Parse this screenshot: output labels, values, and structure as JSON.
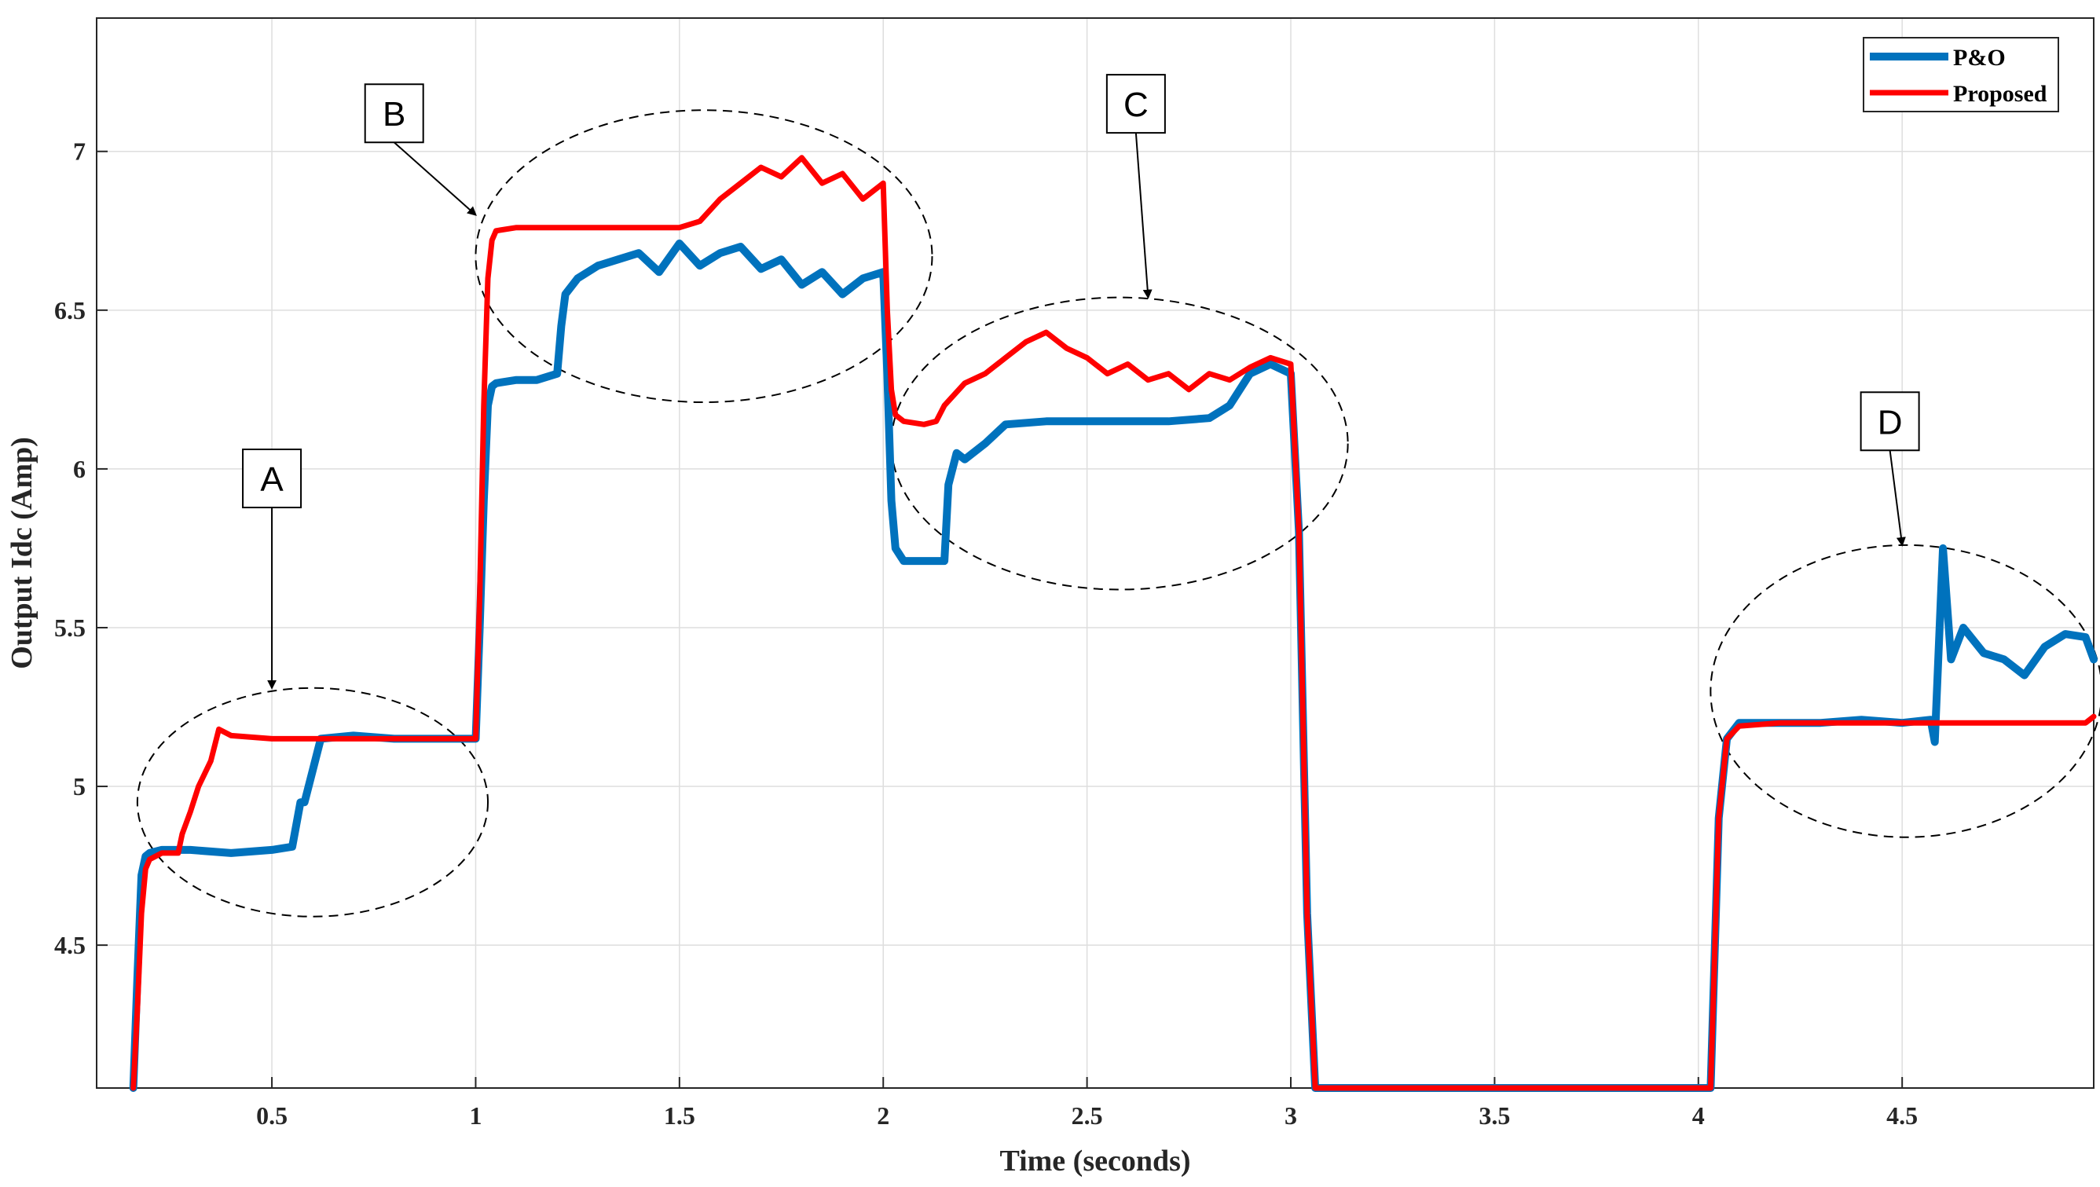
{
  "chart_data": {
    "type": "line",
    "xlabel": "Time (seconds)",
    "ylabel": "Output Idc (Amp)",
    "xlim": [
      0.07,
      4.97
    ],
    "ylim": [
      4.05,
      7.42
    ],
    "xticks": [
      0.5,
      1,
      1.5,
      2,
      2.5,
      3,
      3.5,
      4,
      4.5
    ],
    "xtick_labels": [
      "0.5",
      "1",
      "1.5",
      "2",
      "2.5",
      "3",
      "3.5",
      "4",
      "4.5"
    ],
    "yticks": [
      4.5,
      5,
      5.5,
      6,
      6.5,
      7
    ],
    "ytick_labels": [
      "4.5",
      "5",
      "5.5",
      "6",
      "6.5",
      "7"
    ],
    "grid": true,
    "legend_position": "top-right",
    "series": [
      {
        "name": "P&O",
        "color": "#0072BD",
        "x": [
          0.16,
          0.17,
          0.18,
          0.19,
          0.2,
          0.23,
          0.3,
          0.4,
          0.5,
          0.55,
          0.56,
          0.57,
          0.58,
          0.6,
          0.62,
          0.7,
          0.8,
          0.9,
          1.0,
          1.01,
          1.02,
          1.03,
          1.04,
          1.05,
          1.1,
          1.15,
          1.2,
          1.21,
          1.22,
          1.25,
          1.3,
          1.35,
          1.4,
          1.45,
          1.5,
          1.55,
          1.6,
          1.65,
          1.7,
          1.75,
          1.8,
          1.85,
          1.9,
          1.95,
          2.0,
          2.01,
          2.02,
          2.03,
          2.05,
          2.1,
          2.15,
          2.16,
          2.18,
          2.2,
          2.25,
          2.3,
          2.4,
          2.5,
          2.6,
          2.7,
          2.8,
          2.85,
          2.9,
          2.95,
          3.0,
          3.02,
          3.04,
          3.06,
          4.03,
          4.05,
          4.07,
          4.1,
          4.2,
          4.3,
          4.4,
          4.5,
          4.57,
          4.58,
          4.6,
          4.62,
          4.65,
          4.7,
          4.75,
          4.8,
          4.85,
          4.9,
          4.95,
          4.97
        ],
        "values": [
          4.05,
          4.4,
          4.72,
          4.78,
          4.79,
          4.8,
          4.8,
          4.79,
          4.8,
          4.81,
          4.88,
          4.95,
          4.95,
          5.05,
          5.15,
          5.16,
          5.15,
          5.15,
          5.15,
          5.5,
          5.9,
          6.2,
          6.26,
          6.27,
          6.28,
          6.28,
          6.3,
          6.45,
          6.55,
          6.6,
          6.64,
          6.66,
          6.68,
          6.62,
          6.71,
          6.64,
          6.68,
          6.7,
          6.63,
          6.66,
          6.58,
          6.62,
          6.55,
          6.6,
          6.62,
          6.3,
          5.9,
          5.75,
          5.71,
          5.71,
          5.71,
          5.95,
          6.05,
          6.03,
          6.08,
          6.14,
          6.15,
          6.15,
          6.15,
          6.15,
          6.16,
          6.2,
          6.3,
          6.33,
          6.3,
          5.8,
          4.6,
          4.05,
          4.05,
          4.9,
          5.15,
          5.2,
          5.2,
          5.2,
          5.21,
          5.2,
          5.21,
          5.14,
          5.75,
          5.4,
          5.5,
          5.42,
          5.4,
          5.35,
          5.44,
          5.48,
          5.47,
          5.4
        ]
      },
      {
        "name": "Proposed",
        "color": "#FF0000",
        "x": [
          0.16,
          0.17,
          0.18,
          0.19,
          0.2,
          0.23,
          0.27,
          0.28,
          0.3,
          0.32,
          0.35,
          0.37,
          0.4,
          0.5,
          0.6,
          0.7,
          0.8,
          0.9,
          1.0,
          1.01,
          1.02,
          1.03,
          1.04,
          1.05,
          1.1,
          1.2,
          1.3,
          1.4,
          1.5,
          1.55,
          1.6,
          1.65,
          1.7,
          1.75,
          1.8,
          1.85,
          1.9,
          1.95,
          2.0,
          2.01,
          2.02,
          2.03,
          2.05,
          2.1,
          2.13,
          2.15,
          2.2,
          2.25,
          2.3,
          2.35,
          2.4,
          2.45,
          2.5,
          2.55,
          2.6,
          2.65,
          2.7,
          2.75,
          2.8,
          2.85,
          2.9,
          2.95,
          3.0,
          3.02,
          3.04,
          3.06,
          4.03,
          4.05,
          4.07,
          4.1,
          4.2,
          4.3,
          4.4,
          4.5,
          4.6,
          4.7,
          4.8,
          4.9,
          4.95,
          4.97
        ],
        "values": [
          4.05,
          4.3,
          4.6,
          4.74,
          4.77,
          4.79,
          4.79,
          4.85,
          4.92,
          5.0,
          5.08,
          5.18,
          5.16,
          5.15,
          5.15,
          5.15,
          5.15,
          5.15,
          5.15,
          5.6,
          6.2,
          6.6,
          6.72,
          6.75,
          6.76,
          6.76,
          6.76,
          6.76,
          6.76,
          6.78,
          6.85,
          6.9,
          6.95,
          6.92,
          6.98,
          6.9,
          6.93,
          6.85,
          6.9,
          6.5,
          6.25,
          6.17,
          6.15,
          6.14,
          6.15,
          6.2,
          6.27,
          6.3,
          6.35,
          6.4,
          6.43,
          6.38,
          6.35,
          6.3,
          6.33,
          6.28,
          6.3,
          6.25,
          6.3,
          6.28,
          6.32,
          6.35,
          6.33,
          5.8,
          4.6,
          4.05,
          4.05,
          4.9,
          5.15,
          5.19,
          5.2,
          5.2,
          5.2,
          5.2,
          5.2,
          5.2,
          5.2,
          5.2,
          5.2,
          5.22
        ]
      }
    ],
    "annotations": [
      {
        "label": "A",
        "box_x": 0.5,
        "box_y": 5.97,
        "arrow_to_x": 0.5,
        "arrow_to_y": 5.31,
        "ellipse": {
          "cx": 0.6,
          "cy": 4.95,
          "rx": 0.43,
          "ry": 0.36
        }
      },
      {
        "label": "B",
        "box_x": 0.8,
        "box_y": 7.12,
        "arrow_to_x": 1.0,
        "arrow_to_y": 6.8,
        "ellipse": {
          "cx": 1.56,
          "cy": 6.67,
          "rx": 0.56,
          "ry": 0.46
        }
      },
      {
        "label": "C",
        "box_x": 2.62,
        "box_y": 7.15,
        "arrow_to_x": 2.65,
        "arrow_to_y": 6.54,
        "ellipse": {
          "cx": 2.58,
          "cy": 6.08,
          "rx": 0.56,
          "ry": 0.46
        }
      },
      {
        "label": "D",
        "box_x": 4.47,
        "box_y": 6.15,
        "arrow_to_x": 4.5,
        "arrow_to_y": 5.76,
        "ellipse": {
          "cx": 4.51,
          "cy": 5.3,
          "rx": 0.48,
          "ry": 0.46
        }
      }
    ]
  }
}
